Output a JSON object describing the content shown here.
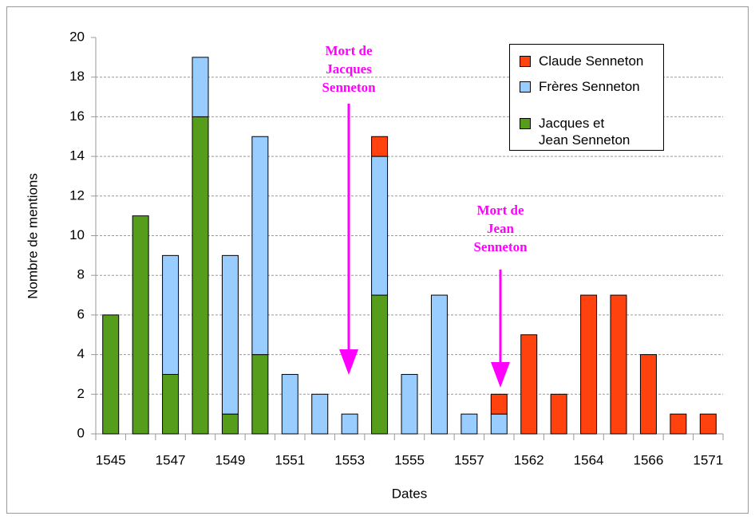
{
  "chart_data": {
    "type": "stacked_bar",
    "xlabel": "Dates",
    "ylabel": "Nombre de mentions",
    "categories": [
      "1545",
      null,
      "1547",
      null,
      "1549",
      null,
      "1551",
      null,
      "1553",
      null,
      "1555",
      null,
      "1557",
      null,
      "1562",
      null,
      "1564",
      null,
      "1566",
      null,
      "1571"
    ],
    "series": [
      {
        "name": "Claude Senneton",
        "color": "#ff420e",
        "values": [
          0,
          0,
          0,
          0,
          0,
          0,
          0,
          0,
          0,
          1,
          0,
          0,
          0,
          1,
          5,
          2,
          7,
          7,
          4,
          1,
          1
        ]
      },
      {
        "name": "Frères Senneton",
        "color": "#99ccff",
        "values": [
          0,
          0,
          6,
          3,
          8,
          11,
          3,
          2,
          1,
          7,
          3,
          7,
          1,
          1,
          0,
          0,
          0,
          0,
          0,
          0,
          0
        ]
      },
      {
        "name": "Jacques et Jean Senneton",
        "color": "#579d1c",
        "values": [
          6,
          11,
          3,
          16,
          1,
          4,
          0,
          0,
          0,
          7,
          0,
          0,
          0,
          0,
          0,
          0,
          0,
          0,
          0,
          0,
          0
        ]
      }
    ],
    "ylim": [
      0,
      20
    ],
    "yticks": [
      0,
      2,
      4,
      6,
      8,
      10,
      12,
      14,
      16,
      18,
      20
    ],
    "grid": true,
    "legend": "top-right",
    "annotations": [
      {
        "text": "Mort de Jacques Senneton"
      },
      {
        "text": "Mort de Jean Senneton"
      }
    ]
  }
}
